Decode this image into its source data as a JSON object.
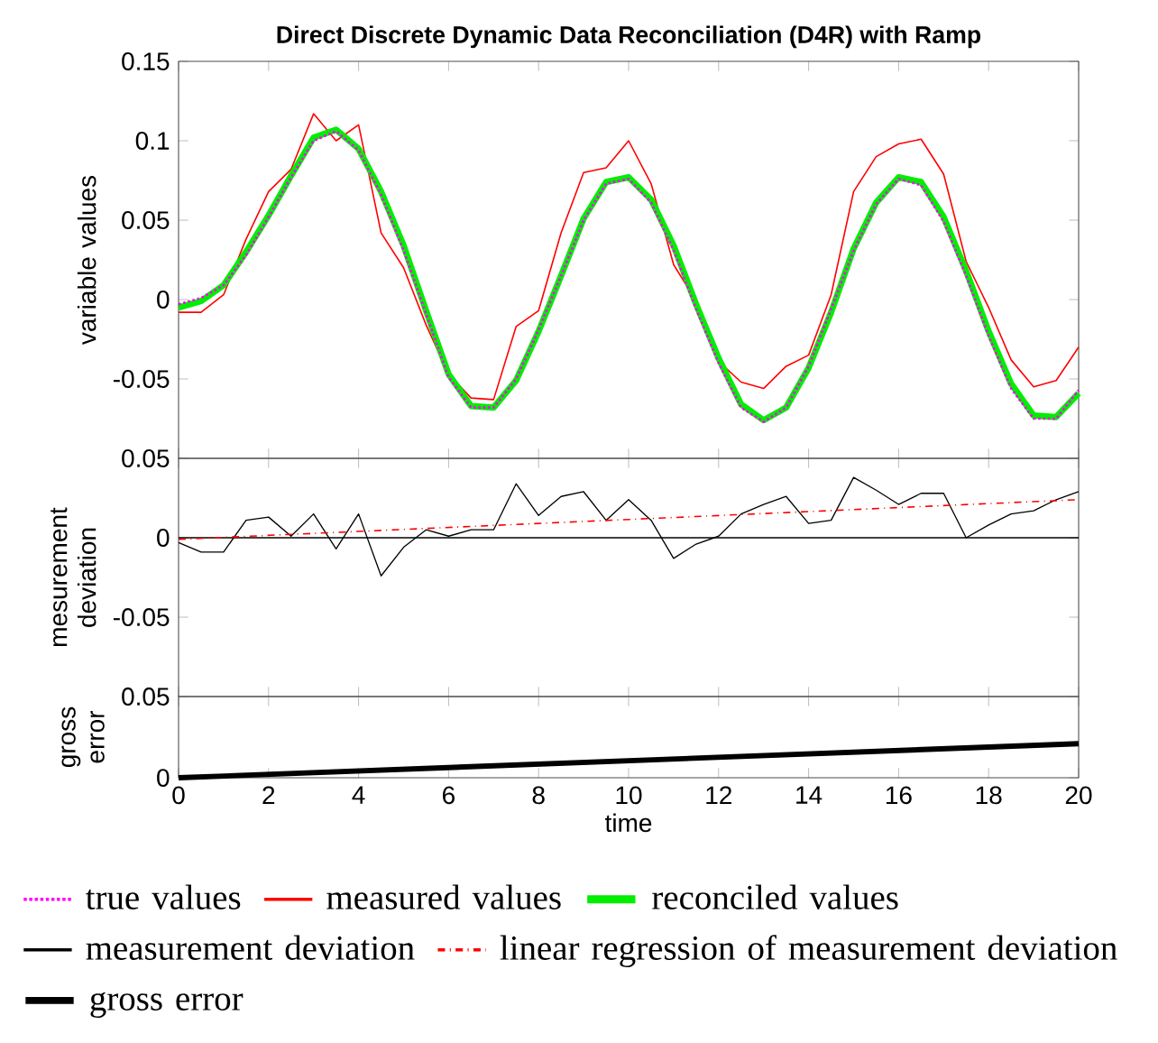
{
  "chart_data": [
    {
      "type": "line",
      "title": "Direct Discrete Dynamic Data Reconciliation (D4R) with Ramp",
      "ylabel": "variable values",
      "x": [
        0,
        0.5,
        1,
        1.5,
        2,
        2.5,
        3,
        3.5,
        4,
        4.5,
        5,
        5.5,
        6,
        6.5,
        7,
        7.5,
        8,
        8.5,
        9,
        9.5,
        10,
        10.5,
        11,
        11.5,
        12,
        12.5,
        13,
        13.5,
        14,
        14.5,
        15,
        15.5,
        16,
        16.5,
        17,
        17.5,
        18,
        18.5,
        19,
        19.5,
        20
      ],
      "series": [
        {
          "name": "true values",
          "color": "#ff00ff",
          "line_style": "dotted",
          "values": [
            -0.003,
            0.001,
            0.009,
            0.028,
            0.052,
            0.077,
            0.1,
            0.106,
            0.094,
            0.066,
            0.031,
            -0.009,
            -0.049,
            -0.068,
            -0.068,
            -0.05,
            -0.019,
            0.015,
            0.05,
            0.073,
            0.076,
            0.061,
            0.031,
            -0.006,
            -0.04,
            -0.068,
            -0.077,
            -0.068,
            -0.042,
            -0.006,
            0.031,
            0.06,
            0.076,
            0.072,
            0.049,
            0.015,
            -0.023,
            -0.056,
            -0.075,
            -0.075,
            -0.057
          ]
        },
        {
          "name": "measured values",
          "color": "#ff0000",
          "line_style": "solid",
          "values": [
            -0.008,
            -0.008,
            0.003,
            0.038,
            0.068,
            0.082,
            0.117,
            0.1,
            0.11,
            0.042,
            0.02,
            -0.016,
            -0.047,
            -0.062,
            -0.063,
            -0.017,
            -0.007,
            0.042,
            0.08,
            0.083,
            0.1,
            0.073,
            0.022,
            -0.001,
            -0.039,
            -0.052,
            -0.056,
            -0.042,
            -0.035,
            0.003,
            0.068,
            0.09,
            0.098,
            0.101,
            0.079,
            0.024,
            -0.005,
            -0.038,
            -0.055,
            -0.051,
            -0.03
          ]
        },
        {
          "name": "reconciled values",
          "color": "#00ee00",
          "line_style": "solid",
          "values": [
            -0.005,
            -0.001,
            0.009,
            0.03,
            0.053,
            0.078,
            0.102,
            0.107,
            0.095,
            0.068,
            0.034,
            -0.007,
            -0.047,
            -0.067,
            -0.068,
            -0.051,
            -0.02,
            0.015,
            0.051,
            0.074,
            0.077,
            0.063,
            0.034,
            -0.003,
            -0.037,
            -0.066,
            -0.076,
            -0.068,
            -0.043,
            -0.008,
            0.032,
            0.061,
            0.077,
            0.074,
            0.052,
            0.018,
            -0.02,
            -0.053,
            -0.073,
            -0.074,
            -0.059
          ]
        }
      ],
      "xlim": [
        0,
        20
      ],
      "xticks": [
        0,
        2,
        4,
        6,
        8,
        10,
        12,
        14,
        16,
        18,
        20
      ],
      "ylim": [
        -0.1,
        0.15
      ],
      "yticks": [
        -0.05,
        0,
        0.05,
        0.1,
        0.15
      ],
      "tick_labels": "y",
      "legend": "bottom"
    },
    {
      "type": "line",
      "ylabel": "mesurement deviation",
      "x": [
        0,
        0.5,
        1,
        1.5,
        2,
        2.5,
        3,
        3.5,
        4,
        4.5,
        5,
        5.5,
        6,
        6.5,
        7,
        7.5,
        8,
        8.5,
        9,
        9.5,
        10,
        10.5,
        11,
        11.5,
        12,
        12.5,
        13,
        13.5,
        14,
        14.5,
        15,
        15.5,
        16,
        16.5,
        17,
        17.5,
        18,
        18.5,
        19,
        19.5,
        20
      ],
      "series": [
        {
          "name": "measurement deviation",
          "color": "#000000",
          "line_style": "solid",
          "values": [
            -0.003,
            -0.009,
            -0.009,
            0.011,
            0.013,
            0.001,
            0.015,
            -0.007,
            0.015,
            -0.024,
            -0.006,
            0.005,
            0.001,
            0.005,
            0.005,
            0.034,
            0.014,
            0.026,
            0.029,
            0.011,
            0.024,
            0.011,
            -0.013,
            -0.004,
            0.001,
            0.015,
            0.021,
            0.026,
            0.009,
            0.011,
            0.038,
            0.03,
            0.021,
            0.028,
            0.028,
            0,
            0.008,
            0.015,
            0.017,
            0.024,
            0.029
          ]
        },
        {
          "name": "linear regression of measurement deviation",
          "color": "#ff0000",
          "line_style": "dashdot",
          "type": "line",
          "x": [
            0,
            20
          ],
          "values": [
            -0.001,
            0.024
          ]
        }
      ],
      "ref_lines": [
        {
          "axis": "y",
          "value": 0,
          "color": "#000000"
        }
      ],
      "xlim": [
        0,
        20
      ],
      "xticks": [
        0,
        2,
        4,
        6,
        8,
        10,
        12,
        14,
        16,
        18,
        20
      ],
      "ylim": [
        -0.1,
        0.05
      ],
      "yticks": [
        -0.05,
        0,
        0.05
      ],
      "tick_labels": "y",
      "legend": "bottom"
    },
    {
      "type": "line",
      "ylabel": "gross error",
      "xlabel": "time",
      "x": [
        0,
        20
      ],
      "series": [
        {
          "name": "gross error",
          "color": "#000000",
          "line_style": "solid",
          "values": [
            0,
            0.021
          ]
        }
      ],
      "xlim": [
        0,
        20
      ],
      "xticks": [
        0,
        2,
        4,
        6,
        8,
        10,
        12,
        14,
        16,
        18,
        20
      ],
      "ylim": [
        0,
        0.05
      ],
      "yticks": [
        0,
        0.05
      ],
      "legend": "bottom"
    }
  ]
}
